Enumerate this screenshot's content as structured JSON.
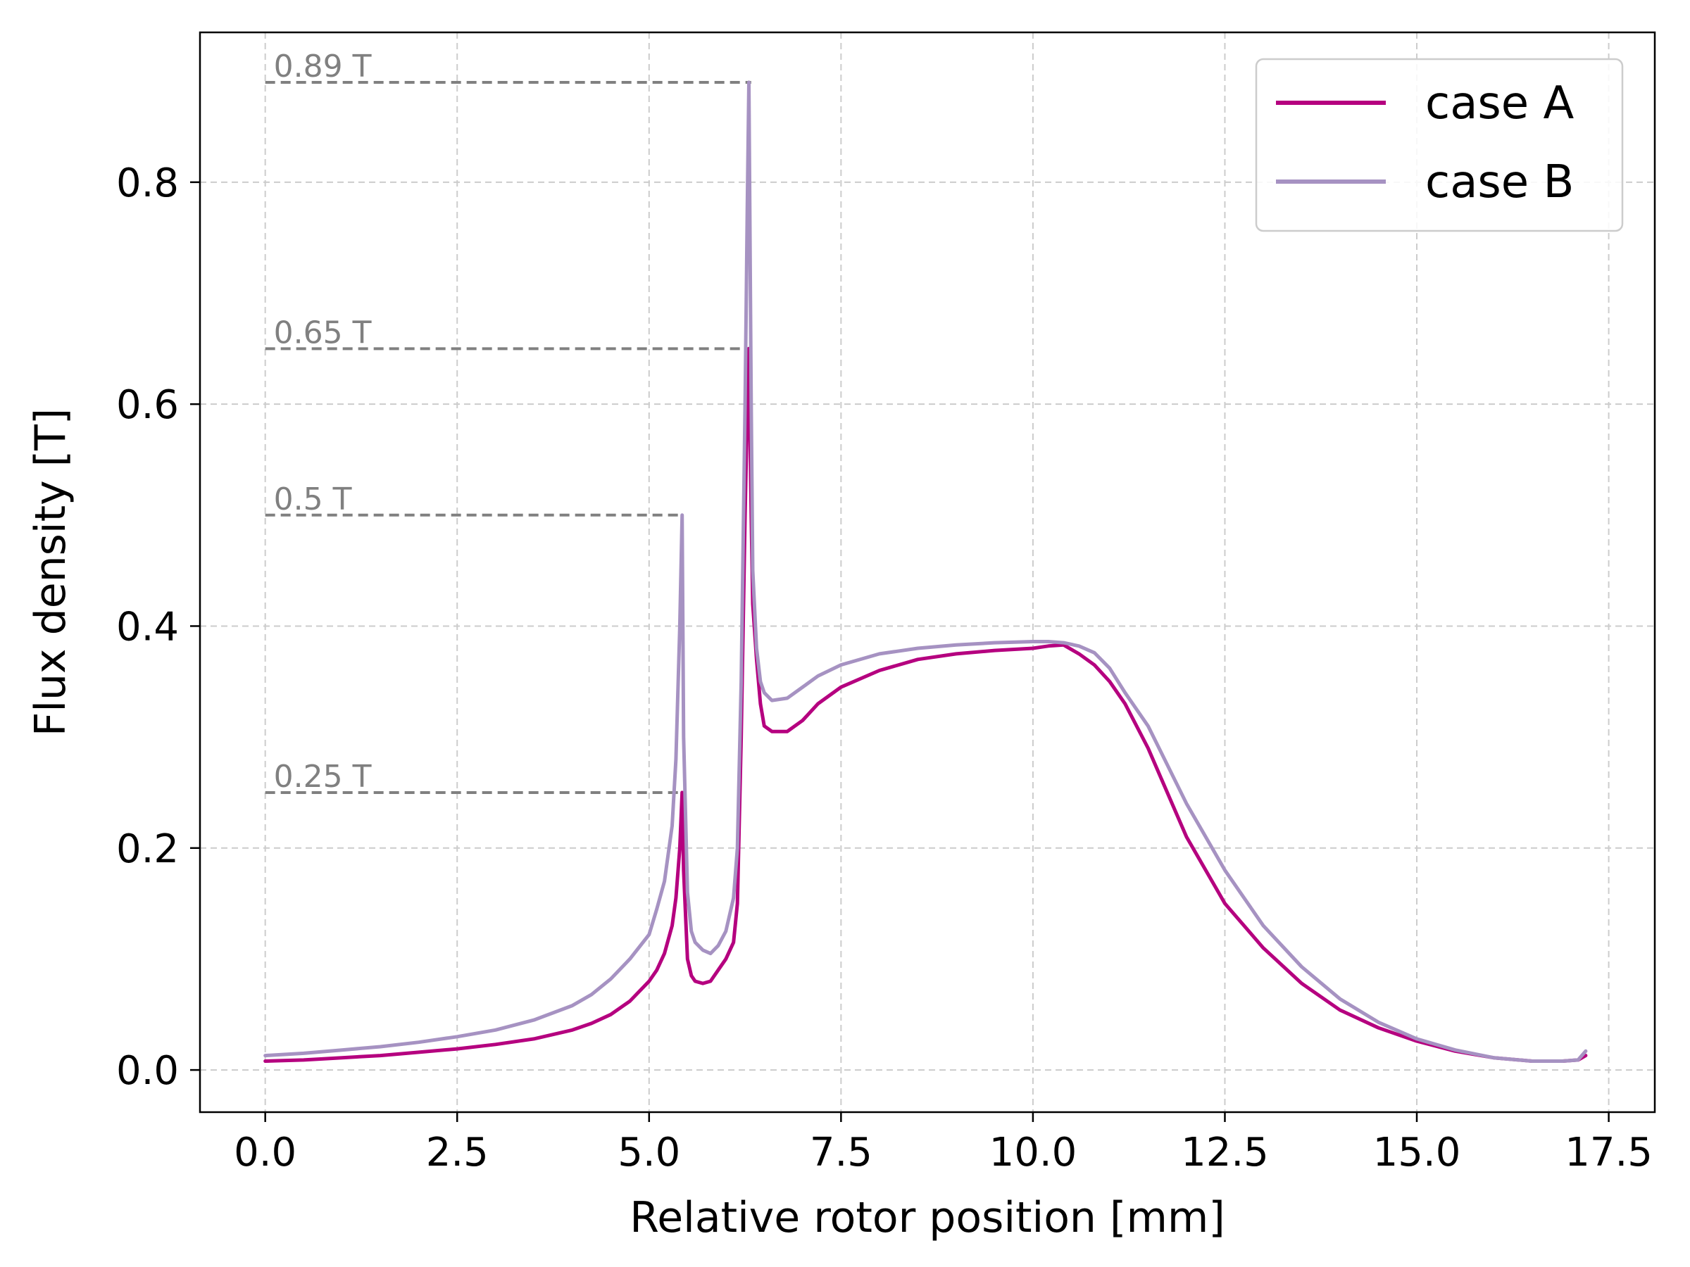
{
  "chart_data": {
    "type": "line",
    "xlabel": "Relative rotor position [mm]",
    "ylabel": "Flux density [T]",
    "xlim": [
      -0.85,
      18.1
    ],
    "ylim": [
      -0.038,
      0.935
    ],
    "xticks": [
      0.0,
      2.5,
      5.0,
      7.5,
      10.0,
      12.5,
      15.0,
      17.5
    ],
    "xtick_labels": [
      "0.0",
      "2.5",
      "5.0",
      "7.5",
      "10.0",
      "12.5",
      "15.0",
      "17.5"
    ],
    "yticks": [
      0.0,
      0.2,
      0.4,
      0.6,
      0.8
    ],
    "ytick_labels": [
      "0.0",
      "0.2",
      "0.4",
      "0.6",
      "0.8"
    ],
    "grid": true,
    "legend_position": "top-right",
    "series": [
      {
        "name": "case A",
        "color": "#b5007f",
        "x": [
          0.0,
          0.5,
          1.0,
          1.5,
          2.0,
          2.5,
          3.0,
          3.5,
          4.0,
          4.25,
          4.5,
          4.75,
          5.0,
          5.1,
          5.2,
          5.3,
          5.35,
          5.4,
          5.43,
          5.45,
          5.5,
          5.55,
          5.6,
          5.7,
          5.8,
          5.9,
          6.0,
          6.1,
          6.15,
          6.2,
          6.25,
          6.28,
          6.3,
          6.33,
          6.35,
          6.4,
          6.45,
          6.5,
          6.6,
          6.8,
          7.0,
          7.2,
          7.5,
          8.0,
          8.5,
          9.0,
          9.5,
          10.0,
          10.2,
          10.4,
          10.6,
          10.8,
          11.0,
          11.2,
          11.5,
          12.0,
          12.5,
          13.0,
          13.5,
          14.0,
          14.5,
          15.0,
          15.5,
          16.0,
          16.5,
          16.9,
          17.1,
          17.2
        ],
        "values": [
          0.008,
          0.009,
          0.011,
          0.013,
          0.016,
          0.019,
          0.023,
          0.028,
          0.036,
          0.042,
          0.05,
          0.062,
          0.08,
          0.09,
          0.105,
          0.13,
          0.155,
          0.2,
          0.25,
          0.18,
          0.1,
          0.085,
          0.08,
          0.078,
          0.08,
          0.09,
          0.1,
          0.115,
          0.15,
          0.3,
          0.5,
          0.6,
          0.65,
          0.5,
          0.42,
          0.37,
          0.33,
          0.31,
          0.305,
          0.305,
          0.315,
          0.33,
          0.345,
          0.36,
          0.37,
          0.375,
          0.378,
          0.38,
          0.382,
          0.383,
          0.375,
          0.365,
          0.35,
          0.33,
          0.29,
          0.21,
          0.15,
          0.11,
          0.078,
          0.054,
          0.038,
          0.026,
          0.017,
          0.011,
          0.008,
          0.008,
          0.009,
          0.013
        ]
      },
      {
        "name": "case B",
        "color": "#a692c2",
        "x": [
          0.0,
          0.5,
          1.0,
          1.5,
          2.0,
          2.5,
          3.0,
          3.5,
          4.0,
          4.25,
          4.5,
          4.75,
          5.0,
          5.1,
          5.2,
          5.3,
          5.35,
          5.4,
          5.43,
          5.45,
          5.5,
          5.55,
          5.6,
          5.7,
          5.8,
          5.9,
          6.0,
          6.1,
          6.15,
          6.2,
          6.25,
          6.28,
          6.3,
          6.33,
          6.35,
          6.4,
          6.45,
          6.5,
          6.6,
          6.8,
          7.0,
          7.2,
          7.5,
          8.0,
          8.5,
          9.0,
          9.5,
          10.0,
          10.2,
          10.4,
          10.6,
          10.8,
          11.0,
          11.2,
          11.5,
          12.0,
          12.5,
          13.0,
          13.5,
          14.0,
          14.5,
          15.0,
          15.5,
          16.0,
          16.5,
          16.9,
          17.1,
          17.2
        ],
        "values": [
          0.013,
          0.015,
          0.018,
          0.021,
          0.025,
          0.03,
          0.036,
          0.045,
          0.058,
          0.068,
          0.082,
          0.1,
          0.122,
          0.145,
          0.17,
          0.22,
          0.28,
          0.4,
          0.5,
          0.3,
          0.16,
          0.125,
          0.115,
          0.108,
          0.105,
          0.112,
          0.125,
          0.155,
          0.2,
          0.35,
          0.6,
          0.78,
          0.89,
          0.6,
          0.45,
          0.38,
          0.35,
          0.34,
          0.333,
          0.335,
          0.345,
          0.355,
          0.365,
          0.375,
          0.38,
          0.383,
          0.385,
          0.386,
          0.386,
          0.385,
          0.382,
          0.376,
          0.362,
          0.34,
          0.31,
          0.24,
          0.18,
          0.13,
          0.093,
          0.064,
          0.043,
          0.028,
          0.018,
          0.011,
          0.008,
          0.008,
          0.009,
          0.017
        ]
      }
    ],
    "annotations": [
      {
        "label": "0.89 T",
        "y": 0.89,
        "x_end": 6.33
      },
      {
        "label": "0.65 T",
        "y": 0.65,
        "x_end": 6.33
      },
      {
        "label": "0.5 T",
        "y": 0.5,
        "x_end": 5.43
      },
      {
        "label": "0.25 T",
        "y": 0.25,
        "x_end": 5.43
      }
    ]
  }
}
